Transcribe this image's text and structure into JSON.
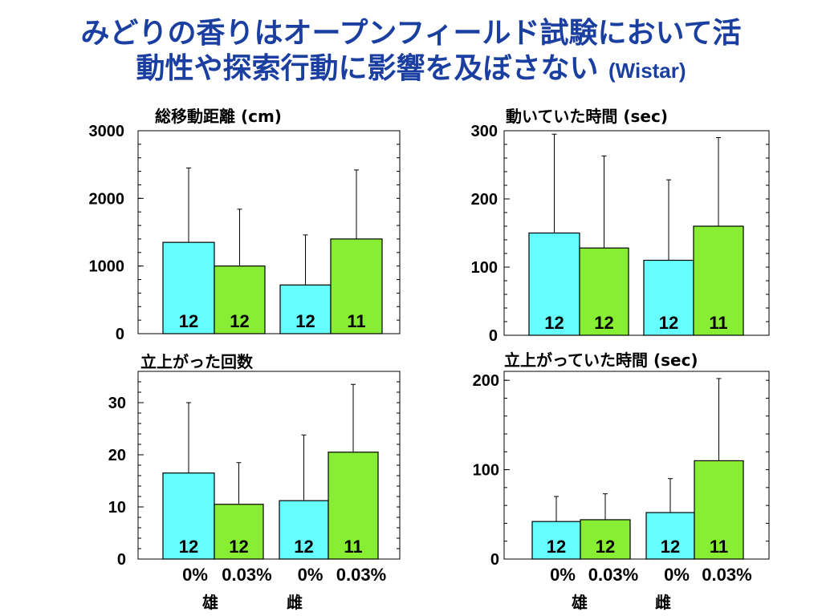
{
  "title": {
    "line1": "みどりの香りはオープンフィールド試験において活",
    "line2": "動性や探索行動に影響を及ぼさない",
    "strain": "(Wistar)"
  },
  "colors": {
    "title": "#1a3fa0",
    "control": "#66ffff",
    "treated": "#88ee33"
  },
  "chart_data": [
    {
      "type": "bar",
      "title": "総移動距離 (cm)",
      "ylim": [
        0,
        3000
      ],
      "yticks": [
        0,
        1000,
        2000,
        3000
      ],
      "series": [
        {
          "values": [
            1350,
            1000,
            720,
            1400
          ],
          "errors": [
            1100,
            840,
            740,
            1020
          ],
          "n": [
            "12",
            "12",
            "12",
            "11"
          ]
        }
      ]
    },
    {
      "type": "bar",
      "title": "動いていた時間 (sec)",
      "ylim": [
        0,
        300
      ],
      "yticks": [
        0,
        100,
        200,
        300
      ],
      "series": [
        {
          "values": [
            150,
            128,
            110,
            160
          ],
          "errors": [
            145,
            135,
            118,
            130
          ],
          "n": [
            "12",
            "12",
            "12",
            "11"
          ]
        }
      ]
    },
    {
      "type": "bar",
      "title": "立上がった回数",
      "ylim": [
        0,
        36
      ],
      "yticks": [
        0,
        10,
        20,
        30
      ],
      "series": [
        {
          "values": [
            16.5,
            10.5,
            11.2,
            20.5
          ],
          "errors": [
            13.5,
            8.0,
            12.6,
            13.0
          ],
          "n": [
            "12",
            "12",
            "12",
            "11"
          ]
        }
      ]
    },
    {
      "type": "bar",
      "title": "立上がっていた時間 (sec)",
      "ylim": [
        0,
        210
      ],
      "yticks": [
        0,
        100,
        200
      ],
      "series": [
        {
          "values": [
            42,
            44,
            52,
            110
          ],
          "errors": [
            28,
            29,
            38,
            92
          ],
          "n": [
            "12",
            "12",
            "12",
            "11"
          ]
        }
      ]
    }
  ],
  "groups": {
    "conc_labels": [
      "0%",
      "0.03%",
      "0%",
      "0.03%"
    ],
    "sex_labels": [
      "雄",
      "雌"
    ]
  }
}
